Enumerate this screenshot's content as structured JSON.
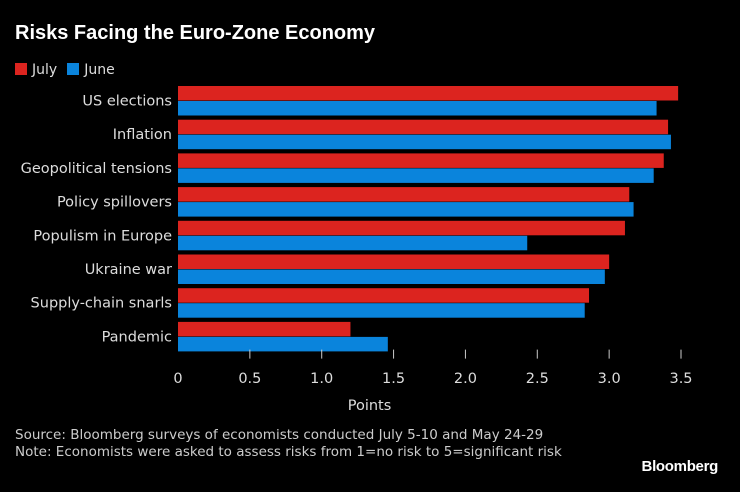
{
  "chart_data": {
    "type": "bar",
    "orientation": "horizontal",
    "title": "Risks Facing the Euro-Zone Economy",
    "xlabel": "Points",
    "ylabel": "",
    "xlim": [
      0,
      3.5
    ],
    "xticks": [
      "0",
      "0.5",
      "1.0",
      "1.5",
      "2.0",
      "2.5",
      "3.0",
      "3.5"
    ],
    "grid": false,
    "legend_position": "top-left",
    "categories": [
      "US elections",
      "Inflation",
      "Geopolitical tensions",
      "Policy spillovers",
      "Populism in Europe",
      "Ukraine war",
      "Supply-chain snarls",
      "Pandemic"
    ],
    "series": [
      {
        "name": "July",
        "color": "#dc241f",
        "values": [
          3.48,
          3.41,
          3.38,
          3.14,
          3.11,
          3.0,
          2.86,
          1.2
        ]
      },
      {
        "name": "June",
        "color": "#0a84dc",
        "values": [
          3.33,
          3.43,
          3.31,
          3.17,
          2.43,
          2.97,
          2.83,
          1.46
        ]
      }
    ]
  },
  "footer": {
    "source": "Source: Bloomberg surveys of economists conducted July 5-10 and May 24-29",
    "note": "Note: Economists were asked to assess risks from 1=no risk to 5=significant risk"
  },
  "logo": "Bloomberg"
}
